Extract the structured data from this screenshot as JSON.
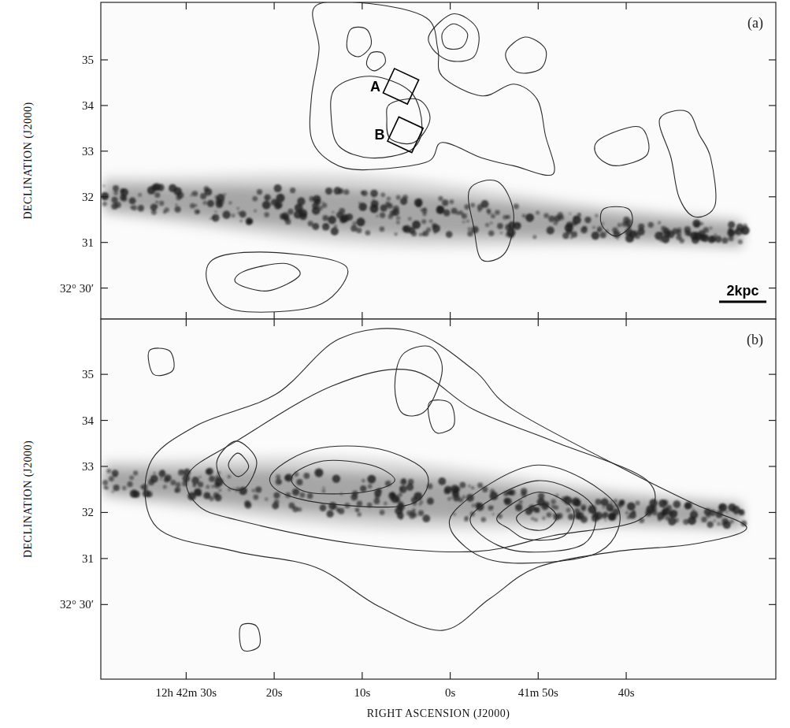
{
  "chart_data": [
    {
      "type": "contour",
      "panel_label": "(a)",
      "ylabel": "DECLINATION (J2000)",
      "tick_labels": "y",
      "scale_bar": "2kpc",
      "xlim": [
        99.7,
        23
      ],
      "ylim": [
        29.32,
        36.26
      ],
      "xticks": [
        {
          "value": 90,
          "label": "12h 42m 30s"
        },
        {
          "value": 80,
          "label": "20s"
        },
        {
          "value": 70,
          "label": "10s"
        },
        {
          "value": 60,
          "label": "0s"
        },
        {
          "value": 50,
          "label": "41m 50s"
        },
        {
          "value": 40,
          "label": "40s"
        }
      ],
      "yticks": [
        {
          "value": 30,
          "label": "32° 30′"
        },
        31,
        32,
        33,
        34,
        35
      ],
      "regions": [
        {
          "label": "A",
          "x": 65.6,
          "y": 34.42
        },
        {
          "label": "B",
          "x": 65.1,
          "y": 33.36
        }
      ],
      "contours": [
        {
          "x": [
            75.3,
            69.0,
            62.7,
            61.4,
            60.9,
            56.4,
            52.8,
            50.1,
            49.2,
            48.3,
            52.8,
            56.4,
            60.9,
            62.7,
            69.9,
            73.5,
            75.75,
            75.75,
            74.9
          ],
          "y": [
            36.18,
            36.23,
            35.92,
            35.24,
            34.64,
            34.21,
            34.47,
            34.13,
            33.36,
            32.5,
            32.68,
            32.85,
            33.19,
            32.76,
            32.59,
            32.76,
            33.27,
            34.21,
            35.24
          ]
        },
        {
          "x": [
            73.05,
            69.0,
            64.5,
            63.2,
            64.5,
            69.0,
            72.6,
            73.5
          ],
          "y": [
            34.38,
            34.64,
            34.3,
            33.53,
            33.02,
            32.85,
            33.1,
            33.7
          ]
        },
        {
          "x": [
            66.8,
            63.6,
            62.3,
            64.1,
            66.8,
            67.2
          ],
          "y": [
            34.04,
            34.13,
            33.7,
            33.19,
            33.27,
            33.7
          ]
        },
        {
          "x": [
            69.0,
            67.7,
            67.4,
            68.6,
            69.5
          ],
          "y": [
            35.15,
            35.15,
            34.93,
            34.76,
            34.9
          ]
        },
        {
          "x": [
            71.3,
            69.5,
            69.0,
            70.4,
            71.7
          ],
          "y": [
            35.67,
            35.67,
            35.32,
            35.07,
            35.24
          ]
        },
        {
          "x": [
            62.3,
            59.6,
            56.9,
            57.3,
            60.0,
            62.0
          ],
          "y": [
            35.58,
            36.01,
            35.67,
            35.07,
            34.98,
            35.24
          ]
        },
        {
          "x": [
            60.9,
            59.6,
            58.05,
            58.7,
            60.5
          ],
          "y": [
            35.58,
            35.79,
            35.58,
            35.27,
            35.27
          ]
        },
        {
          "x": [
            53.7,
            51.5,
            49.2,
            49.7,
            52.4
          ],
          "y": [
            35.15,
            35.5,
            35.24,
            34.81,
            34.73
          ]
        },
        {
          "x": [
            36.2,
            33.1,
            31.7,
            30.4,
            29.9,
            32.2,
            34.0,
            34.9
          ],
          "y": [
            33.7,
            33.87,
            33.36,
            32.85,
            31.82,
            31.56,
            31.99,
            32.85
          ]
        },
        {
          "x": [
            42.95,
            38.5,
            37.6,
            41.2,
            43.4
          ],
          "y": [
            33.27,
            33.53,
            32.93,
            32.68,
            32.93
          ]
        },
        {
          "x": [
            57.8,
            54.6,
            52.8,
            53.7,
            56.4,
            57.3
          ],
          "y": [
            32.16,
            32.33,
            31.65,
            30.79,
            30.62,
            31.31
          ]
        },
        {
          "x": [
            42.5,
            39.8,
            39.4,
            41.2,
            42.8
          ],
          "y": [
            31.74,
            31.74,
            31.39,
            31.14,
            31.39
          ]
        },
        {
          "x": [
            87.0,
            81.6,
            73.5,
            71.7,
            75.3,
            84.3,
            87.4
          ],
          "y": [
            30.62,
            30.79,
            30.62,
            30.28,
            29.6,
            29.51,
            30.03
          ]
        },
        {
          "x": [
            83.4,
            78.9,
            77.1,
            80.7,
            84.3
          ],
          "y": [
            30.37,
            30.54,
            30.28,
            29.94,
            30.11
          ]
        }
      ]
    },
    {
      "type": "contour",
      "panel_label": "(b)",
      "ylabel": "DECLINATION (J2000)",
      "xlabel": "RIGHT ASCENSION (J2000)",
      "xlim": [
        99.7,
        23
      ],
      "ylim": [
        28.38,
        36.2
      ],
      "xticks": [
        {
          "value": 90,
          "label": "12h 42m 30s"
        },
        {
          "value": 80,
          "label": "20s"
        },
        {
          "value": 70,
          "label": "10s"
        },
        {
          "value": 60,
          "label": "0s"
        },
        {
          "value": 50,
          "label": "41m 50s"
        },
        {
          "value": 40,
          "label": "40s"
        }
      ],
      "yticks": [
        {
          "value": 30,
          "label": "32° 30′"
        },
        31,
        32,
        33,
        34,
        35
      ],
      "contours": [
        {
          "x": [
            94.2,
            88.8,
            79.8,
            72.6,
            64.5,
            57.3,
            52.8,
            39.4,
            32.2,
            26.3,
            32.2,
            41.2,
            50.1,
            55.5,
            60.9,
            68.1,
            75.3,
            84.3,
            93.3
          ],
          "y": [
            33.03,
            33.89,
            34.57,
            35.77,
            35.94,
            35.09,
            34.23,
            32.86,
            32.18,
            31.67,
            31.32,
            31.15,
            30.81,
            30.13,
            29.44,
            29.96,
            30.81,
            31.15,
            31.67
          ]
        },
        {
          "x": [
            89.7,
            84.3,
            73.5,
            64.5,
            57.3,
            48.3,
            37.6,
            38.5,
            48.3,
            57.3,
            70.8,
            84.3,
            88.8
          ],
          "y": [
            32.86,
            33.55,
            34.74,
            35.09,
            34.23,
            33.55,
            32.69,
            31.84,
            31.5,
            31.15,
            31.32,
            31.84,
            32.18
          ]
        },
        {
          "x": [
            86.5,
            84.3,
            82.0,
            83.4,
            85.6
          ],
          "y": [
            33.12,
            33.55,
            33.12,
            32.52,
            32.61
          ]
        },
        {
          "x": [
            85.2,
            84.1,
            82.9,
            84.1
          ],
          "y": [
            33.03,
            33.29,
            33.0,
            32.78
          ]
        },
        {
          "x": [
            80.2,
            75.3,
            68.1,
            62.7,
            64.5,
            73.5,
            79.3
          ],
          "y": [
            32.86,
            33.38,
            33.38,
            32.86,
            32.18,
            32.18,
            32.44
          ]
        },
        {
          "x": [
            78.0,
            74.4,
            69.0,
            66.3,
            69.9,
            76.2
          ],
          "y": [
            32.78,
            33.12,
            33.03,
            32.69,
            32.44,
            32.44
          ]
        },
        {
          "x": [
            59.6,
            50.1,
            41.2,
            43.0,
            52.8,
            58.2
          ],
          "y": [
            32.01,
            33.03,
            32.18,
            31.15,
            30.9,
            31.24
          ]
        },
        {
          "x": [
            57.3,
            50.1,
            43.9,
            44.8,
            51.9,
            56.4
          ],
          "y": [
            32.01,
            32.69,
            32.18,
            31.32,
            31.15,
            31.5
          ]
        },
        {
          "x": [
            54.6,
            50.1,
            46.1,
            47.0,
            51.0,
            53.2
          ],
          "y": [
            31.92,
            32.44,
            32.09,
            31.5,
            31.41,
            31.63
          ]
        },
        {
          "x": [
            52.4,
            49.7,
            47.9,
            49.2,
            51.5
          ],
          "y": [
            31.92,
            32.18,
            31.92,
            31.63,
            31.67
          ]
        },
        {
          "x": [
            65.4,
            62.3,
            60.9,
            62.7,
            65.4,
            66.3
          ],
          "y": [
            35.43,
            35.6,
            35.09,
            34.23,
            34.15,
            34.74
          ]
        },
        {
          "x": [
            62.3,
            60.0,
            59.6,
            61.4,
            62.3
          ],
          "y": [
            34.4,
            34.37,
            33.89,
            33.72,
            33.97
          ]
        },
        {
          "x": [
            94.2,
            91.9,
            91.5,
            93.7
          ],
          "y": [
            35.51,
            35.51,
            35.09,
            35.0
          ]
        },
        {
          "x": [
            83.8,
            82.0,
            81.7,
            83.6
          ],
          "y": [
            29.53,
            29.53,
            29.1,
            29.02
          ]
        }
      ]
    }
  ]
}
